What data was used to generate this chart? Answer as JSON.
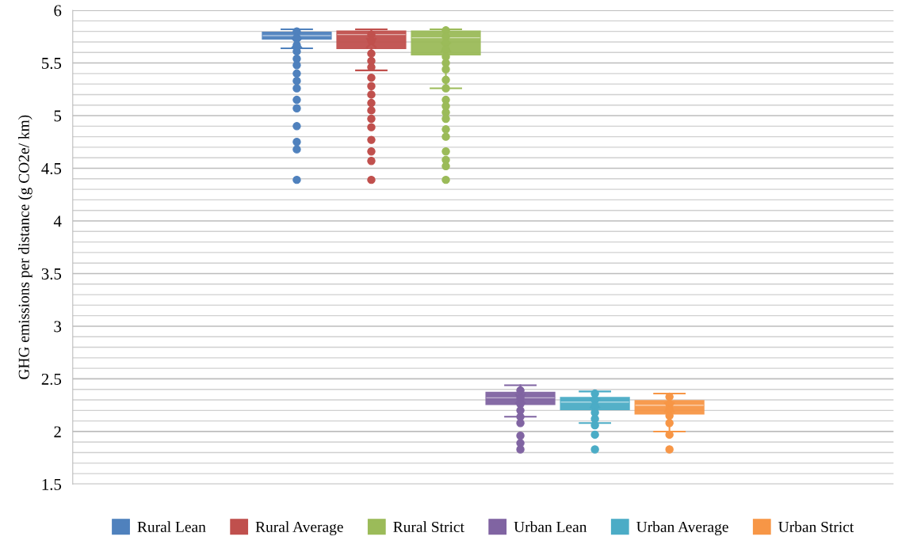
{
  "chart_data": {
    "type": "box",
    "ylabel": "GHG emissions per distance (g CO2e/ km)",
    "categories": [
      null
    ],
    "ylim": [
      1.5,
      6
    ],
    "yticks": [
      1.5,
      {
        "value": 1.6,
        "label": null
      },
      {
        "value": 1.7,
        "label": null
      },
      {
        "value": 1.8,
        "label": null
      },
      {
        "value": 1.9,
        "label": null
      },
      2,
      {
        "value": 2.1,
        "label": null
      },
      {
        "value": 2.2,
        "label": null
      },
      {
        "value": 2.3,
        "label": null
      },
      {
        "value": 2.4,
        "label": null
      },
      2.5,
      {
        "value": 2.6,
        "label": null
      },
      {
        "value": 2.7,
        "label": null
      },
      {
        "value": 2.8,
        "label": null
      },
      {
        "value": 2.9,
        "label": null
      },
      3,
      {
        "value": 3.1,
        "label": null
      },
      {
        "value": 3.2,
        "label": null
      },
      {
        "value": 3.3,
        "label": null
      },
      {
        "value": 3.4,
        "label": null
      },
      3.5,
      {
        "value": 3.6,
        "label": null
      },
      {
        "value": 3.7,
        "label": null
      },
      {
        "value": 3.8,
        "label": null
      },
      {
        "value": 3.9,
        "label": null
      },
      4,
      {
        "value": 4.1,
        "label": null
      },
      {
        "value": 4.2,
        "label": null
      },
      {
        "value": 4.3,
        "label": null
      },
      {
        "value": 4.4,
        "label": null
      },
      4.5,
      {
        "value": 4.6,
        "label": null
      },
      {
        "value": 4.7,
        "label": null
      },
      {
        "value": 4.8,
        "label": null
      },
      {
        "value": 4.9,
        "label": null
      },
      5,
      {
        "value": 5.1,
        "label": null
      },
      {
        "value": 5.2,
        "label": null
      },
      {
        "value": 5.3,
        "label": null
      },
      {
        "value": 5.4,
        "label": null
      },
      5.5,
      {
        "value": 5.6,
        "label": null
      },
      {
        "value": 5.7,
        "label": null
      },
      {
        "value": 5.8,
        "label": null
      },
      {
        "value": 5.9,
        "label": null
      },
      6
    ],
    "grid": "y",
    "legend": "bottom",
    "marker": "circle",
    "series": [
      {
        "name": "Rural Lean",
        "color": "#4f81bd",
        "boxes": [
          {
            "low": 5.64,
            "q1": 5.73,
            "median": 5.76,
            "q3": 5.79,
            "high": 5.82,
            "mean": 5.69,
            "outliers": [
              5.8,
              5.74,
              5.67,
              5.61,
              5.54,
              5.48,
              5.4,
              5.33,
              5.26,
              5.15,
              5.07,
              4.9,
              4.75,
              4.68,
              4.39
            ]
          }
        ]
      },
      {
        "name": "Rural Average",
        "color": "#c0504d",
        "boxes": [
          {
            "low": 5.43,
            "q1": 5.64,
            "median": 5.77,
            "q3": 5.8,
            "high": 5.82,
            "mean": 5.69,
            "outliers": [
              5.77,
              5.71,
              5.59,
              5.52,
              5.46,
              5.36,
              5.28,
              5.2,
              5.12,
              5.05,
              4.97,
              4.89,
              4.77,
              4.66,
              4.57,
              4.39
            ]
          }
        ]
      },
      {
        "name": "Rural Strict",
        "color": "#9bbb59",
        "boxes": [
          {
            "low": 5.26,
            "q1": 5.58,
            "median": 5.74,
            "q3": 5.8,
            "high": 5.82,
            "mean": 5.65,
            "outliers": [
              5.81,
              5.75,
              5.69,
              5.63,
              5.56,
              5.5,
              5.44,
              5.34,
              5.26,
              5.15,
              5.09,
              5.03,
              4.97,
              4.87,
              4.8,
              4.66,
              4.58,
              4.52,
              4.39
            ]
          }
        ]
      },
      {
        "name": "Urban Lean",
        "color": "#8064a2",
        "boxes": [
          {
            "low": 2.14,
            "q1": 2.26,
            "median": 2.32,
            "q3": 2.37,
            "high": 2.44,
            "mean": 2.31,
            "outliers": [
              2.39,
              2.32,
              2.26,
              2.2,
              2.14,
              2.08,
              1.96,
              1.89,
              1.83
            ]
          }
        ]
      },
      {
        "name": "Urban Average",
        "color": "#4bacc6",
        "boxes": [
          {
            "low": 2.08,
            "q1": 2.21,
            "median": 2.28,
            "q3": 2.32,
            "high": 2.38,
            "mean": 2.27,
            "outliers": [
              2.36,
              2.3,
              2.24,
              2.18,
              2.12,
              2.06,
              1.97,
              1.83
            ]
          }
        ]
      },
      {
        "name": "Urban Strict",
        "color": "#f79646",
        "boxes": [
          {
            "low": 2.0,
            "q1": 2.17,
            "median": 2.25,
            "q3": 2.29,
            "high": 2.36,
            "mean": 2.23,
            "outliers": [
              2.33,
              2.26,
              2.21,
              2.15,
              2.08,
              1.97,
              1.83
            ]
          }
        ]
      }
    ]
  }
}
